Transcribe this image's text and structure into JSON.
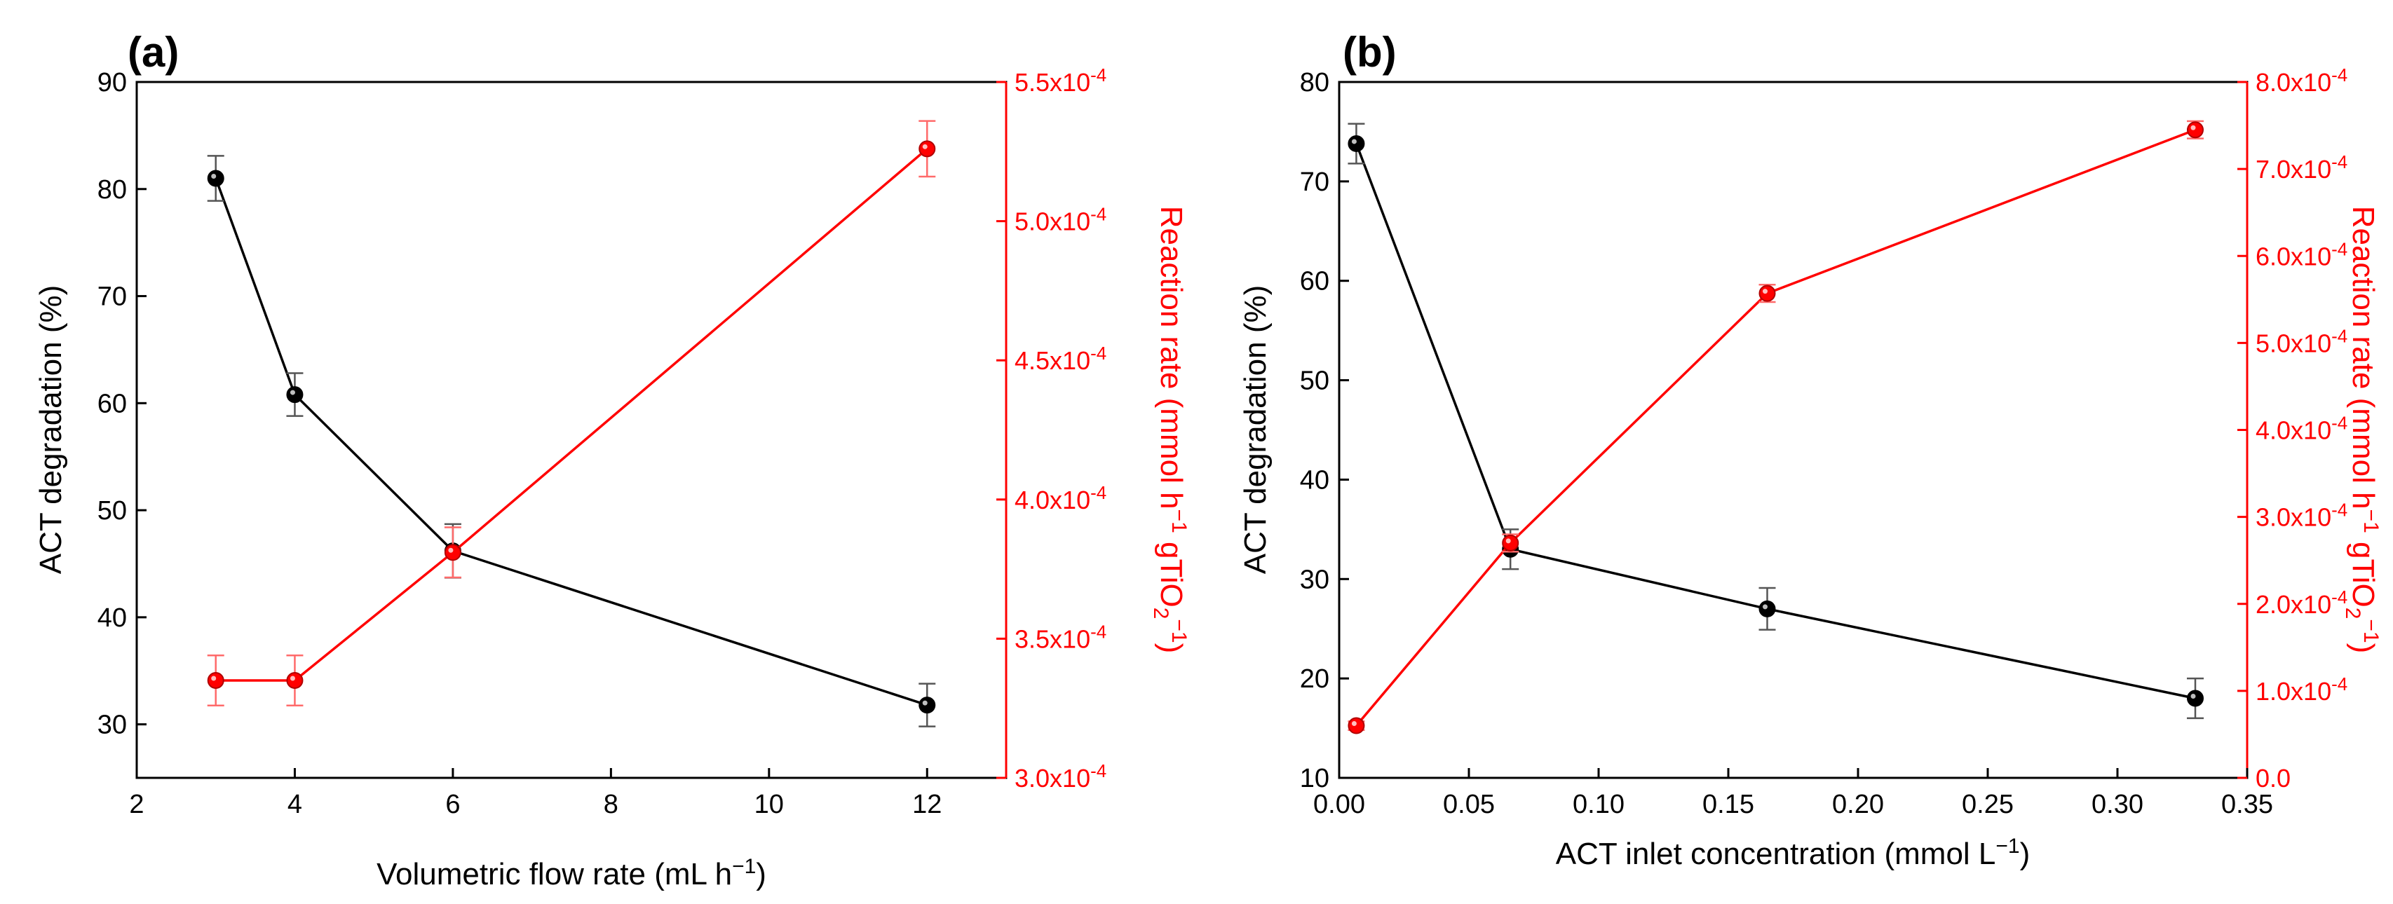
{
  "figure": {
    "left_color": "#000000",
    "right_color": "#ff0000"
  },
  "chart_data": [
    {
      "panel": "(a)",
      "type": "line",
      "xlabel": "Volumetric flow rate (mL h",
      "xlabel_sup": "−1",
      "xlabel_end": ")",
      "ylabel": "ACT degradation (%)",
      "y2label": "Reaction rate (mmol h",
      "y2label_sup": "−1",
      "y2label_mid": " gTiO",
      "y2label_sub": "2",
      "y2label_sup2": "−1",
      "y2label_end": ")",
      "xlim": [
        2,
        13
      ],
      "ylim": [
        25,
        90
      ],
      "y2lim": [
        0.0003,
        0.00055
      ],
      "x_ticks": [
        2,
        4,
        6,
        8,
        10,
        12
      ],
      "x_tick_labels": [
        "2",
        "4",
        "6",
        "8",
        "10",
        "12"
      ],
      "y_ticks": [
        30,
        40,
        50,
        60,
        70,
        80,
        90
      ],
      "y_tick_labels": [
        "30",
        "40",
        "50",
        "60",
        "70",
        "80",
        "90"
      ],
      "y2_ticks": [
        0.0003,
        0.00035,
        0.0004,
        0.00045,
        0.0005,
        0.00055
      ],
      "y2_tick_mantissa": [
        "3.0x10",
        "3.5x10",
        "4.0x10",
        "4.5x10",
        "5.0x10",
        "5.5x10"
      ],
      "y2_tick_exp": [
        "-4",
        "-4",
        "-4",
        "-4",
        "-4",
        "-4"
      ],
      "series": [
        {
          "name": "ACT degradation",
          "axis": "left",
          "color": "#000000",
          "x": [
            3,
            4,
            6,
            12
          ],
          "values": [
            81.0,
            60.8,
            46.2,
            31.8
          ],
          "errors": [
            2.1,
            2.0,
            2.5,
            2.0
          ]
        },
        {
          "name": "Reaction rate",
          "axis": "right",
          "color": "#ff0000",
          "x": [
            3,
            4,
            6,
            12
          ],
          "values": [
            0.000335,
            0.000335,
            0.000381,
            0.000526
          ],
          "errors": [
            9e-06,
            9e-06,
            9e-06,
            1e-05
          ]
        }
      ]
    },
    {
      "panel": "(b)",
      "type": "line",
      "xlabel": "ACT inlet concentration (mmol L",
      "xlabel_sup": "−1",
      "xlabel_end": ")",
      "ylabel": "ACT degradation (%)",
      "y2label": "Reaction rate (mmol h",
      "y2label_sup": "−1",
      "y2label_mid": " gTiO",
      "y2label_sub": "2",
      "y2label_sup2": "−1",
      "y2label_end": ")",
      "xlim": [
        0,
        0.35
      ],
      "ylim": [
        10,
        80
      ],
      "y2lim": [
        0.0,
        0.0008
      ],
      "x_ticks": [
        0.0,
        0.05,
        0.1,
        0.15,
        0.2,
        0.25,
        0.3,
        0.35
      ],
      "x_tick_labels": [
        "0.00",
        "0.05",
        "0.10",
        "0.15",
        "0.20",
        "0.25",
        "0.30",
        "0.35"
      ],
      "y_ticks": [
        10,
        20,
        30,
        40,
        50,
        60,
        70,
        80
      ],
      "y_tick_labels": [
        "10",
        "20",
        "30",
        "40",
        "50",
        "60",
        "70",
        "80"
      ],
      "y2_ticks": [
        0,
        0.0001,
        0.0002,
        0.0003,
        0.0004,
        0.0005,
        0.0006,
        0.0007,
        0.0008
      ],
      "y2_tick_mantissa": [
        "0.0",
        "1.0x10",
        "2.0x10",
        "3.0x10",
        "4.0x10",
        "5.0x10",
        "6.0x10",
        "7.0x10",
        "8.0x10"
      ],
      "y2_tick_exp": [
        "",
        "-4",
        "-4",
        "-4",
        "-4",
        "-4",
        "-4",
        "-4",
        "-4"
      ],
      "series": [
        {
          "name": "ACT degradation",
          "axis": "left",
          "color": "#000000",
          "x": [
            0.0066,
            0.066,
            0.165,
            0.33
          ],
          "values": [
            73.8,
            33.0,
            27.0,
            18.0
          ],
          "errors": [
            2.0,
            2.0,
            2.1,
            2.0
          ]
        },
        {
          "name": "Reaction rate",
          "axis": "right",
          "color": "#ff0000",
          "x": [
            0.0066,
            0.066,
            0.165,
            0.33
          ],
          "values": [
            6e-05,
            0.00027,
            0.000557,
            0.000745
          ],
          "errors": [
            5e-06,
            1e-05,
            1e-05,
            1e-05
          ]
        }
      ]
    }
  ]
}
